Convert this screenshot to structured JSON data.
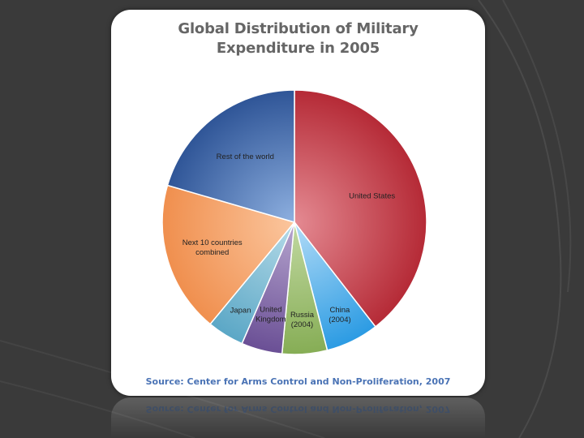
{
  "title_line1": "Global Distribution of Military",
  "title_line2": "Expenditure in 2005",
  "source": "Source: Center for Arms Control and Non-Proliferation, 2007",
  "chart_data": {
    "type": "pie",
    "start_angle_deg": 0,
    "direction": "clockwise",
    "slices": [
      {
        "label": [
          "United States"
        ],
        "value": 39.5,
        "color_light": "#e48a92",
        "color_dark": "#b52a36"
      },
      {
        "label": [
          "China",
          "(2004)"
        ],
        "value": 6.5,
        "color_light": "#b3dcf7",
        "color_dark": "#2b9be3"
      },
      {
        "label": [
          "Russia",
          "(2004)"
        ],
        "value": 5.5,
        "color_light": "#c2d9a2",
        "color_dark": "#86ad55"
      },
      {
        "label": [
          "United",
          "Kingdom"
        ],
        "value": 5.0,
        "color_light": "#b7a6cf",
        "color_dark": "#6a4f95"
      },
      {
        "label": [
          "Japan"
        ],
        "value": 4.5,
        "color_light": "#b6dbe8",
        "color_dark": "#5ba7c6"
      },
      {
        "label": [
          "Next 10 countries",
          "combined"
        ],
        "value": 18.5,
        "color_light": "#fbc69e",
        "color_dark": "#f08f4e"
      },
      {
        "label": [
          "Rest of the world"
        ],
        "value": 20.5,
        "color_light": "#8eb0e0",
        "color_dark": "#2f5597"
      }
    ]
  }
}
